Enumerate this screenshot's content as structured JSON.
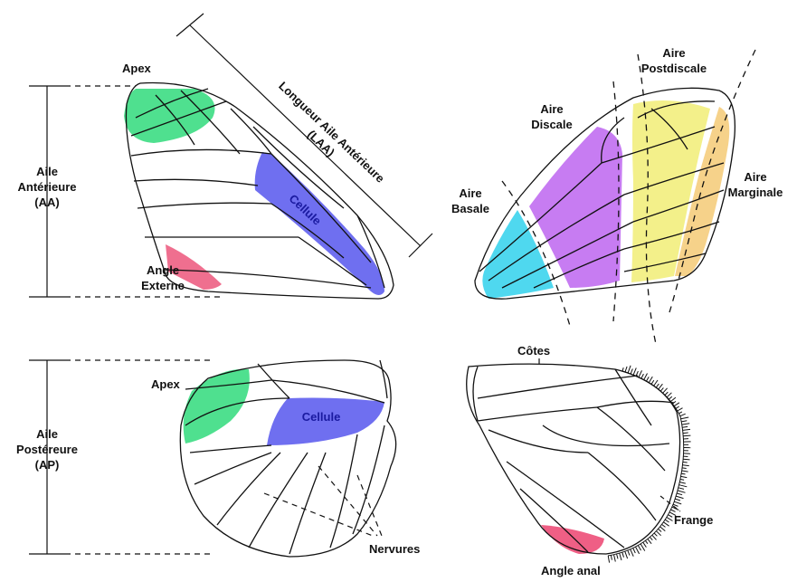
{
  "labels": {
    "apex_top": "Apex",
    "apex_bottom": "Apex",
    "aa_line1": "Aile",
    "aa_line2": "Antérieure",
    "aa_line3": "(AA)",
    "ap_line1": "Aile",
    "ap_line2": "Postéreure",
    "ap_line3": "(AP)",
    "angle_externe_1": "Angle",
    "angle_externe_2": "Externe",
    "laa_line1": "Longueur Aile Antérieure",
    "laa_line2": "(LAA)",
    "cellule_top": "Cellule",
    "cellule_bottom": "Cellule",
    "aire_postdiscale_1": "Aire",
    "aire_postdiscale_2": "Postdiscale",
    "aire_discale_1": "Aire",
    "aire_discale_2": "Discale",
    "aire_basale_1": "Aire",
    "aire_basale_2": "Basale",
    "aire_marginale_1": "Aire",
    "aire_marginale_2": "Marginale",
    "cotes": "Côtes",
    "frange": "Frange",
    "nervures": "Nervures",
    "angle_anal": "Angle anal"
  },
  "colors": {
    "apex": "#4fe08f",
    "cellule": "#6f6ff0",
    "angle_externe": "#ef6f8f",
    "basale": "#4fd8ef",
    "discale": "#c77cf2",
    "postdiscale": "#f3f08a",
    "marginale": "#f6d28a",
    "angle_anal": "#ef5f85"
  }
}
